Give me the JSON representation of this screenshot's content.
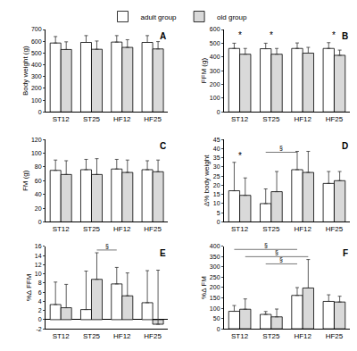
{
  "chart_data": [
    {
      "type": "bar",
      "panel": "A",
      "y_label": "Body weight (g)",
      "categories": [
        "ST12",
        "ST25",
        "HF12",
        "HF25"
      ],
      "series": [
        {
          "name": "adult group",
          "color": "#ffffff",
          "values": [
            585,
            590,
            593,
            590
          ],
          "errors": [
            55,
            58,
            55,
            58
          ]
        },
        {
          "name": "old group",
          "color": "#d9d9d9",
          "values": [
            530,
            532,
            548,
            535
          ],
          "errors": [
            65,
            70,
            65,
            62
          ]
        }
      ],
      "ylim": [
        0,
        700
      ],
      "yticks": [
        0,
        100,
        200,
        300,
        400,
        500,
        600,
        700
      ],
      "grid": false,
      "legend": "top",
      "annotations": [],
      "brackets": []
    },
    {
      "type": "bar",
      "panel": "B",
      "y_label": "FFM (g)",
      "categories": [
        "ST12",
        "ST25",
        "HF12",
        "HF25"
      ],
      "series": [
        {
          "name": "adult group",
          "color": "#ffffff",
          "values": [
            462,
            460,
            462,
            462
          ],
          "errors": [
            38,
            40,
            40,
            42
          ]
        },
        {
          "name": "old group",
          "color": "#d9d9d9",
          "values": [
            420,
            420,
            428,
            412
          ],
          "errors": [
            42,
            42,
            42,
            38
          ]
        }
      ],
      "ylim": [
        0,
        600
      ],
      "yticks": [
        0,
        100,
        200,
        300,
        400,
        500,
        600
      ],
      "grid": false,
      "annotations": [
        {
          "category": "ST12",
          "y": 512,
          "text": "*"
        },
        {
          "category": "ST25",
          "y": 512,
          "text": "*"
        },
        {
          "category": "HF25",
          "y": 512,
          "text": "*"
        }
      ],
      "brackets": []
    },
    {
      "type": "bar",
      "panel": "C",
      "y_label": "FM (g)",
      "categories": [
        "ST12",
        "ST25",
        "HF12",
        "HF25"
      ],
      "series": [
        {
          "name": "adult group",
          "color": "#ffffff",
          "values": [
            75,
            76,
            77,
            76
          ],
          "errors": [
            15,
            15,
            14,
            13
          ]
        },
        {
          "name": "old group",
          "color": "#d9d9d9",
          "values": [
            69,
            69,
            72,
            73
          ],
          "errors": [
            20,
            23,
            18,
            17
          ]
        }
      ],
      "ylim": [
        0,
        120
      ],
      "yticks": [
        0,
        20,
        40,
        60,
        80,
        100,
        120
      ],
      "grid": false,
      "annotations": [],
      "brackets": []
    },
    {
      "type": "bar",
      "panel": "D",
      "y_label": "Δ% body weight",
      "categories": [
        "ST12",
        "ST25",
        "HF12",
        "HF25"
      ],
      "series": [
        {
          "name": "adult group",
          "color": "#ffffff",
          "values": [
            17,
            10,
            28.5,
            21
          ],
          "errors": [
            15.5,
            8,
            10,
            6.5
          ]
        },
        {
          "name": "old group",
          "color": "#d9d9d9",
          "values": [
            14.5,
            16.5,
            27,
            22.5
          ],
          "errors": [
            9.5,
            11,
            11.5,
            5
          ]
        }
      ],
      "ylim": [
        0,
        45
      ],
      "yticks": [
        0,
        5,
        10,
        15,
        20,
        25,
        30,
        35,
        40,
        45
      ],
      "grid": false,
      "annotations": [
        {
          "category": "ST12",
          "y": 32.5,
          "text": "*"
        }
      ],
      "brackets": [
        {
          "from": {
            "category": "ST25",
            "series": "adult group"
          },
          "to": {
            "category": "HF12",
            "series": "adult group"
          },
          "y": 38,
          "text": "§"
        }
      ]
    },
    {
      "type": "bar",
      "panel": "E",
      "y_label": "%Δ FFM",
      "categories": [
        "ST12",
        "ST25",
        "HF12",
        "HF25"
      ],
      "series": [
        {
          "name": "adult group",
          "color": "#ffffff",
          "values": [
            3.3,
            2.2,
            7.8,
            3.7
          ],
          "errors": [
            4.9,
            8.4,
            3.6,
            7
          ]
        },
        {
          "name": "old group",
          "color": "#d9d9d9",
          "values": [
            2.6,
            8.8,
            5.2,
            -1
          ],
          "errors": [
            5.1,
            5.8,
            5,
            11.8
          ]
        }
      ],
      "ylim": [
        -2,
        16
      ],
      "yticks": [
        -2,
        0,
        2,
        4,
        6,
        8,
        10,
        12,
        14,
        16
      ],
      "grid": false,
      "annotations": [],
      "brackets": [
        {
          "from": {
            "category": "ST25",
            "series": "old group"
          },
          "to": {
            "category": "HF12",
            "series": "adult group"
          },
          "y": 15.2,
          "text": "§"
        }
      ]
    },
    {
      "type": "bar",
      "panel": "F",
      "y_label": "%Δ FM",
      "categories": [
        "ST12",
        "ST25",
        "HF12",
        "HF25"
      ],
      "series": [
        {
          "name": "adult group",
          "color": "#ffffff",
          "values": [
            85,
            70,
            162,
            133
          ],
          "errors": [
            28,
            14,
            38,
            32
          ]
        },
        {
          "name": "old group",
          "color": "#d9d9d9",
          "values": [
            95,
            58,
            198,
            130
          ],
          "errors": [
            50,
            38,
            138,
            28
          ]
        }
      ],
      "ylim": [
        0,
        400
      ],
      "yticks": [
        0,
        50,
        100,
        150,
        200,
        250,
        300,
        350,
        400
      ],
      "grid": false,
      "annotations": [],
      "brackets": [
        {
          "from": {
            "category": "ST12",
            "series": "adult group"
          },
          "to": {
            "category": "HF12",
            "series": "adult group"
          },
          "y": 385,
          "text": "§"
        },
        {
          "from": {
            "category": "ST12",
            "series": "old group"
          },
          "to": {
            "category": "HF12",
            "series": "old group"
          },
          "y": 350,
          "text": "§"
        },
        {
          "from": {
            "category": "ST25",
            "series": "adult group"
          },
          "to": {
            "category": "HF12",
            "series": "adult group"
          },
          "y": 315,
          "text": "§"
        }
      ]
    }
  ]
}
